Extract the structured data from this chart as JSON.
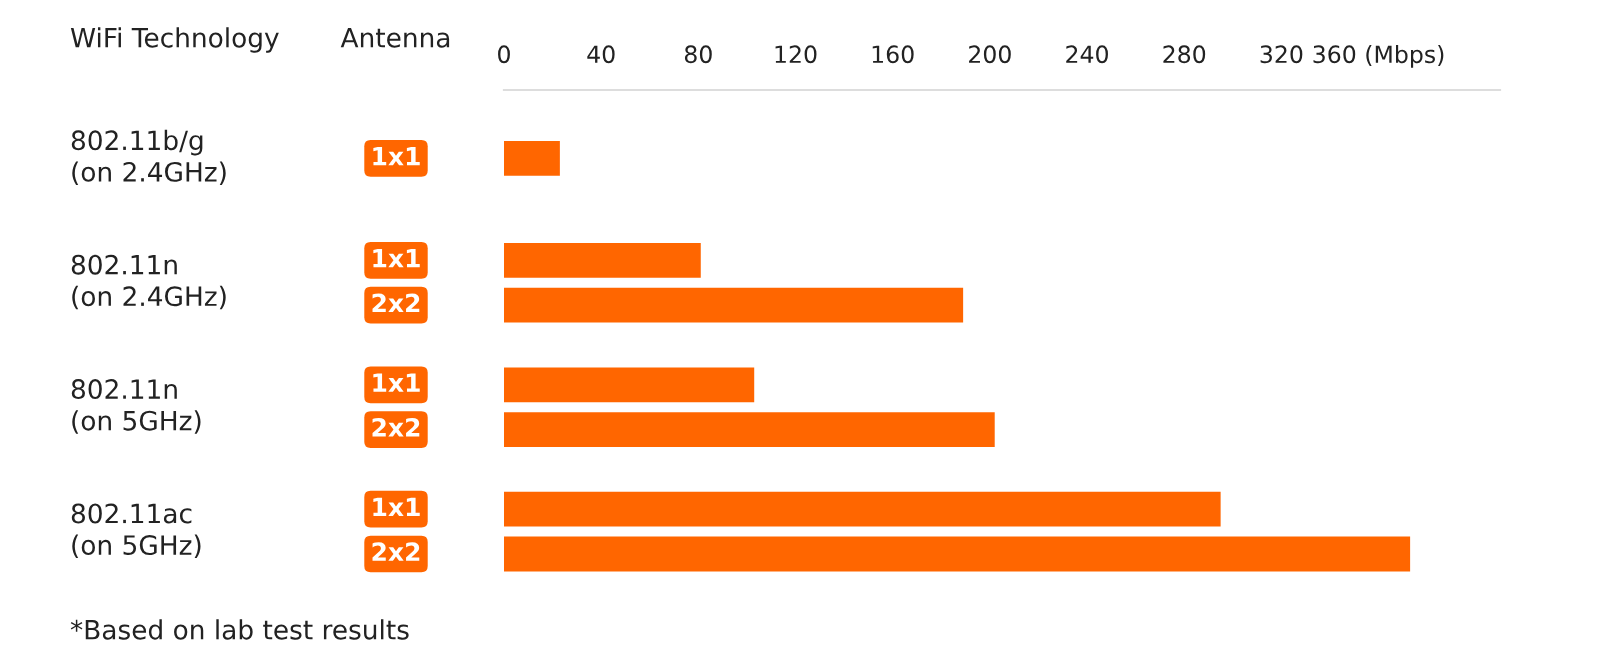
{
  "chart_data": {
    "type": "bar",
    "orientation": "horizontal",
    "ylabel": "WiFi Technology",
    "legend_title": "Antenna",
    "categories": [
      "802.11b/g\n(on 2.4GHz)",
      "802.11n\n(on 2.4GHz)",
      "802.11n\n(on 5GHz)",
      "802.11ac\n(on 5GHz)"
    ],
    "series": [
      {
        "name": "1x1",
        "color": "#ff6600",
        "axis": "x2",
        "values": [
          23,
          81,
          103,
          295
        ]
      },
      {
        "name": "2x2",
        "color": "#ff6600",
        "axis": "x2",
        "values": [
          null,
          189,
          202,
          373
        ]
      }
    ],
    "x2lim": [
      0,
      410
    ],
    "x2ticks": [
      0,
      40,
      80,
      120,
      160,
      200,
      240,
      280,
      320,
      {
        "value": 360,
        "label": "360 (Mbps)"
      }
    ],
    "annotations": [
      "*Based on lab test results"
    ]
  }
}
